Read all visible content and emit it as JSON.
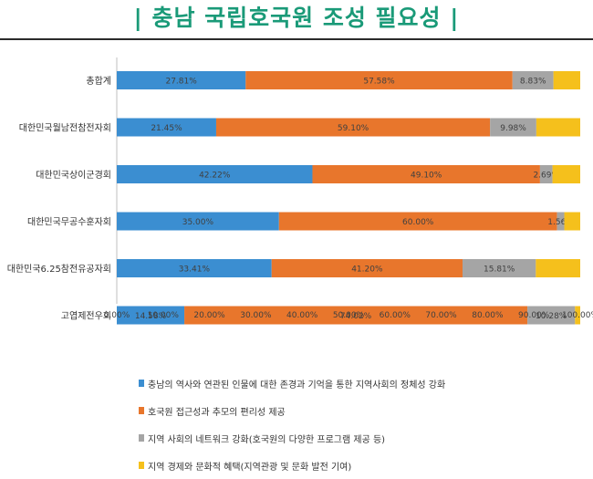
{
  "page": {
    "title": "| 충남 국립호국원 조성 필요성 |"
  },
  "chart_data": {
    "type": "bar",
    "orientation": "horizontal",
    "stacked": "percent",
    "title": "",
    "categories": [
      "총합계",
      "대한민국월남전참전자회",
      "대한민국상이군경회",
      "대한민국무공수훈자회",
      "대한민국6.25참전유공자회",
      "고엽제전우회"
    ],
    "series": [
      {
        "name": "충남의 역사와 연관된 인물에 대한 존경과 기억을 통한 지역사회의 정체성 강화",
        "color": "#3b8ed1",
        "values": [
          27.81,
          21.45,
          42.22,
          35.0,
          33.41,
          14.58
        ],
        "labels": [
          "27.81%",
          "21.45%",
          "42.22%",
          "35.00%",
          "33.41%",
          "14.58%"
        ]
      },
      {
        "name": "호국원 접근성과 추모의 편리성 제공",
        "color": "#e8762c",
        "values": [
          57.58,
          59.1,
          49.1,
          60.0,
          41.2,
          74.02
        ],
        "labels": [
          "57.58%",
          "59.10%",
          "49.10%",
          "60.00%",
          "41.20%",
          "74.02%"
        ]
      },
      {
        "name": "지역 사회의 네트워크 강화(호국원의 다양한 프로그램 제공 등)",
        "color": "#a5a5a5",
        "values": [
          8.83,
          9.98,
          2.69,
          1.56,
          15.81,
          10.28
        ],
        "labels": [
          "8.83%",
          "9.98%",
          "2.69%",
          "1.56%",
          "15.81%",
          "10.28%"
        ]
      },
      {
        "name": "지역 경제와 문화적 혜택(지역관광 및 문화 발전 기여)",
        "color": "#f5c01c",
        "values": [
          5.78,
          9.47,
          5.99,
          3.44,
          9.58,
          1.12
        ],
        "labels": [
          "",
          "",
          "",
          "",
          "",
          ""
        ]
      }
    ],
    "xlim": [
      0,
      100
    ],
    "xticks": [
      "0.00%",
      "10.00%",
      "20.00%",
      "30.00%",
      "40.00%",
      "50.00%",
      "60.00%",
      "70.00%",
      "80.00%",
      "90.00%",
      "100.00%"
    ],
    "grid": false,
    "legend": "bottom"
  }
}
